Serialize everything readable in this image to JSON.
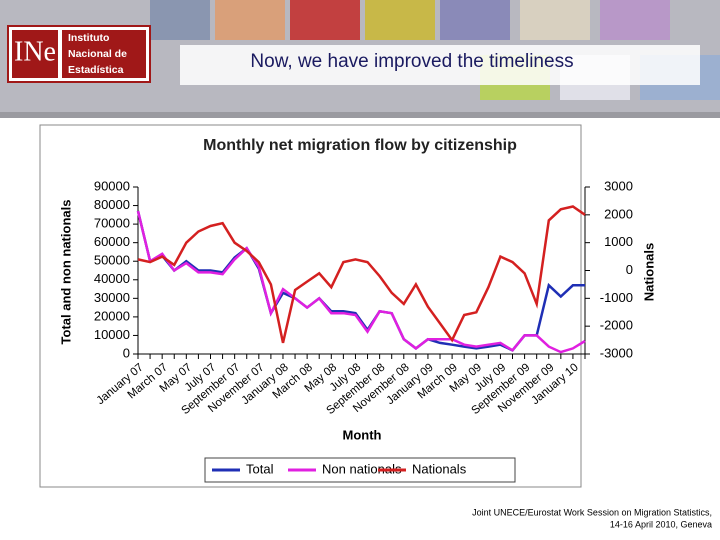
{
  "header": {
    "logo": [
      "Instituto",
      "Nacional de",
      "Estadística"
    ],
    "title": "Now, we have improved the timeliness"
  },
  "footer": [
    "Joint UNECE/Eurostat Work Session on Migration Statistics,",
    "14-16 April 2010, Geneva"
  ],
  "chart_data": {
    "type": "line",
    "title": "Monthly net migration flow by citizenship",
    "x_label": "Month",
    "y_label": "Total and non nationals",
    "y2_label": "Nationals",
    "categories": [
      "January 07",
      null,
      "March 07",
      null,
      "May 07",
      null,
      "July 07",
      null,
      "September 07",
      null,
      "November 07",
      null,
      "January 08",
      null,
      "March 08",
      null,
      "May 08",
      null,
      "July 08",
      null,
      "September 08",
      null,
      "November 08",
      null,
      "January 09",
      null,
      "March 09",
      null,
      "May 09",
      null,
      "July 09",
      null,
      "September 09",
      null,
      "November 09",
      null,
      "January 10",
      null
    ],
    "series": [
      {
        "name": "Total",
        "color": "#1f2fb5",
        "values": [
          77000,
          50000,
          53000,
          45000,
          50000,
          45000,
          45000,
          44000,
          52000,
          57000,
          46000,
          22000,
          33000,
          30000,
          25000,
          30000,
          23000,
          23000,
          22000,
          13000,
          23000,
          22000,
          8000,
          3000,
          8000,
          6000,
          5000,
          4000,
          3000,
          4000,
          5000,
          2000,
          10000,
          10000,
          37000,
          31000,
          37000,
          37000
        ]
      },
      {
        "name": "Non nationals",
        "color": "#e020e0",
        "values": [
          77000,
          50000,
          54000,
          45000,
          49000,
          44000,
          44000,
          43000,
          51000,
          57000,
          47000,
          22000,
          35000,
          30000,
          25000,
          30000,
          22000,
          22000,
          21000,
          12000,
          23000,
          22000,
          8000,
          3000,
          8000,
          8000,
          8000,
          5000,
          4000,
          5000,
          6000,
          2000,
          10000,
          10000,
          4000,
          1000,
          3000,
          7000
        ]
      },
      {
        "name": "Nationals",
        "color": "#d42020",
        "axis": "y2",
        "values": [
          400,
          300,
          500,
          200,
          1000,
          1400,
          1600,
          1700,
          1000,
          700,
          300,
          -500,
          -2600,
          -700,
          -400,
          -100,
          -600,
          300,
          400,
          300,
          -200,
          -800,
          -1200,
          -500,
          -1300,
          -1900,
          -2500,
          -1600,
          -1500,
          -600,
          500,
          300,
          -100,
          -1200,
          1800,
          2200,
          2300,
          2000
        ]
      }
    ],
    "ylim": [
      0,
      90000
    ],
    "yticks": [
      0,
      10000,
      20000,
      30000,
      40000,
      50000,
      60000,
      70000,
      80000,
      90000
    ],
    "y2lim": [
      -3000,
      3000
    ],
    "y2ticks": [
      -3000,
      -2000,
      -1000,
      0,
      1000,
      2000,
      3000
    ],
    "legend": "bottom"
  }
}
